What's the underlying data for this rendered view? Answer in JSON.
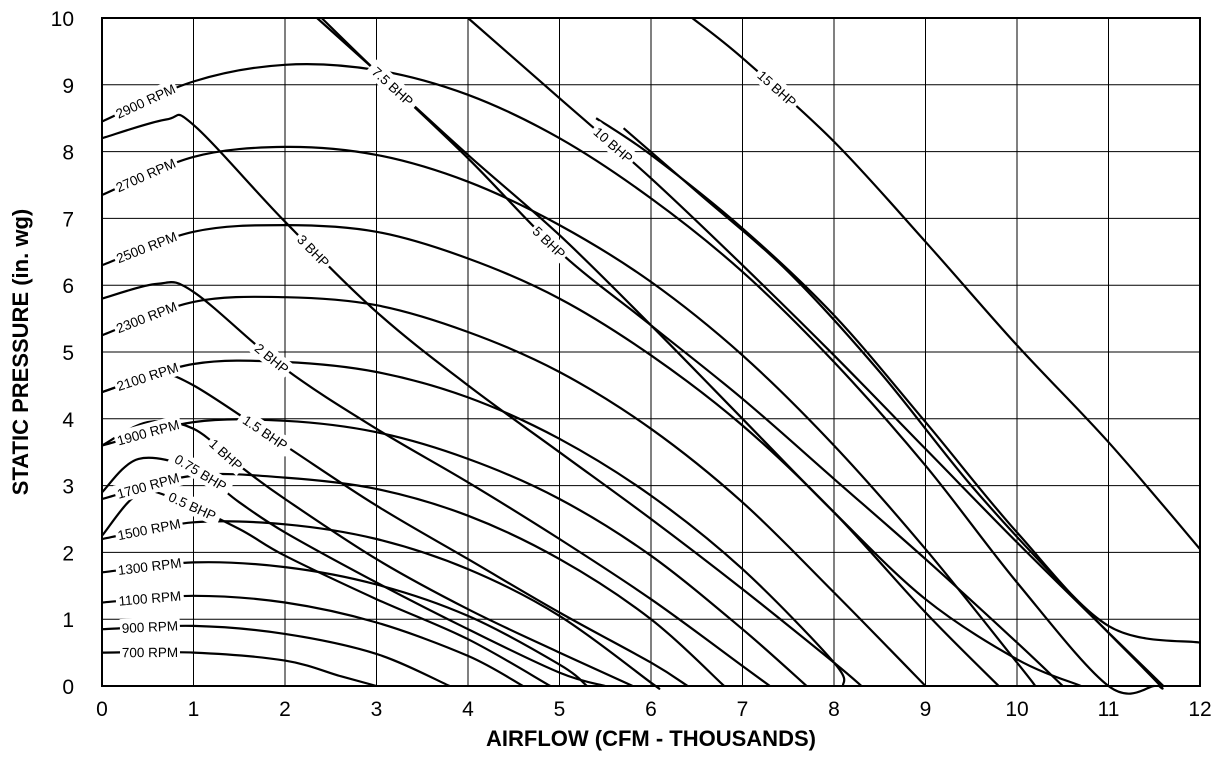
{
  "chart_data": {
    "type": "line",
    "title": "",
    "xlabel": "AIRFLOW (CFM - THOUSANDS)",
    "ylabel": "STATIC PRESSURE (in. wg)",
    "xlim": [
      0,
      12
    ],
    "ylim": [
      0,
      10
    ],
    "xticks": [
      "0",
      "1",
      "2",
      "3",
      "4",
      "5",
      "6",
      "7",
      "8",
      "9",
      "10",
      "11",
      "12"
    ],
    "yticks": [
      "0",
      "1",
      "2",
      "3",
      "4",
      "5",
      "6",
      "7",
      "8",
      "9",
      "10"
    ],
    "grid": true,
    "rpm_series": [
      {
        "label": "2900 RPM",
        "points": [
          [
            0,
            8.45
          ],
          [
            1,
            9.05
          ],
          [
            2,
            9.3
          ],
          [
            3,
            9.22
          ],
          [
            4,
            8.85
          ],
          [
            5,
            8.2
          ],
          [
            6,
            7.3
          ],
          [
            7,
            6.2
          ],
          [
            8,
            4.85
          ],
          [
            9,
            3.3
          ],
          [
            10,
            1.55
          ],
          [
            11,
            0
          ],
          [
            11.5,
            -0.9
          ]
        ]
      },
      {
        "label": "2700 RPM",
        "points": [
          [
            0,
            7.35
          ],
          [
            1,
            7.92
          ],
          [
            2,
            8.07
          ],
          [
            3,
            7.95
          ],
          [
            4,
            7.55
          ],
          [
            5,
            6.9
          ],
          [
            6,
            6.05
          ],
          [
            7,
            4.95
          ],
          [
            8,
            3.6
          ],
          [
            9,
            2.05
          ],
          [
            10,
            0.35
          ],
          [
            10.2,
            0
          ]
        ]
      },
      {
        "label": "2500 RPM",
        "points": [
          [
            0,
            6.3
          ],
          [
            1,
            6.8
          ],
          [
            2,
            6.9
          ],
          [
            3,
            6.8
          ],
          [
            4,
            6.4
          ],
          [
            5,
            5.8
          ],
          [
            6,
            4.95
          ],
          [
            7,
            3.9
          ],
          [
            8,
            2.6
          ],
          [
            9,
            1.1
          ],
          [
            9.8,
            0
          ]
        ]
      },
      {
        "label": "2300 RPM",
        "points": [
          [
            0,
            5.25
          ],
          [
            1,
            5.75
          ],
          [
            2,
            5.82
          ],
          [
            3,
            5.7
          ],
          [
            4,
            5.3
          ],
          [
            5,
            4.7
          ],
          [
            6,
            3.85
          ],
          [
            7,
            2.75
          ],
          [
            8,
            1.4
          ],
          [
            9,
            0
          ]
        ]
      },
      {
        "label": "2100 RPM",
        "points": [
          [
            0,
            4.4
          ],
          [
            1,
            4.82
          ],
          [
            2,
            4.85
          ],
          [
            3,
            4.7
          ],
          [
            4,
            4.32
          ],
          [
            5,
            3.7
          ],
          [
            6,
            2.85
          ],
          [
            7,
            1.75
          ],
          [
            8,
            0.35
          ],
          [
            8.1,
            0
          ]
        ]
      },
      {
        "label": "1900 RPM",
        "points": [
          [
            0,
            3.6
          ],
          [
            1,
            3.95
          ],
          [
            2,
            3.97
          ],
          [
            3,
            3.8
          ],
          [
            4,
            3.4
          ],
          [
            5,
            2.8
          ],
          [
            6,
            1.95
          ],
          [
            7,
            0.85
          ],
          [
            7.7,
            0
          ]
        ]
      },
      {
        "label": "1700 RPM",
        "points": [
          [
            0,
            2.8
          ],
          [
            1,
            3.15
          ],
          [
            2,
            3.12
          ],
          [
            3,
            2.95
          ],
          [
            4,
            2.55
          ],
          [
            5,
            1.9
          ],
          [
            6,
            1.0
          ],
          [
            6.8,
            0
          ]
        ]
      },
      {
        "label": "1500 RPM",
        "points": [
          [
            0,
            2.2
          ],
          [
            1,
            2.45
          ],
          [
            2,
            2.42
          ],
          [
            3,
            2.2
          ],
          [
            4,
            1.75
          ],
          [
            5,
            1.05
          ],
          [
            6,
            0.05
          ],
          [
            6.05,
            0
          ]
        ]
      },
      {
        "label": "1300 RPM",
        "points": [
          [
            0,
            1.7
          ],
          [
            1,
            1.85
          ],
          [
            2,
            1.78
          ],
          [
            3,
            1.52
          ],
          [
            4,
            1.05
          ],
          [
            5,
            0.32
          ],
          [
            5.3,
            0
          ]
        ]
      },
      {
        "label": "1100 RPM",
        "points": [
          [
            0,
            1.25
          ],
          [
            1,
            1.35
          ],
          [
            2,
            1.25
          ],
          [
            3,
            0.95
          ],
          [
            4,
            0.45
          ],
          [
            4.6,
            0
          ]
        ]
      },
      {
        "label": "900 RPM",
        "points": [
          [
            0,
            0.85
          ],
          [
            1,
            0.9
          ],
          [
            2,
            0.78
          ],
          [
            3,
            0.48
          ],
          [
            3.8,
            0
          ]
        ]
      },
      {
        "label": "700 RPM",
        "points": [
          [
            0,
            0.5
          ],
          [
            1,
            0.5
          ],
          [
            2,
            0.38
          ],
          [
            2.6,
            0.15
          ],
          [
            3,
            0
          ]
        ]
      }
    ],
    "bhp_series": [
      {
        "label": "0.5 BHP",
        "points": [
          [
            0,
            2.25
          ],
          [
            0.4,
            2.88
          ],
          [
            0.8,
            2.8
          ],
          [
            1.5,
            2.35
          ],
          [
            2,
            1.95
          ],
          [
            3,
            1.3
          ],
          [
            4,
            0.7
          ],
          [
            4.9,
            0
          ]
        ]
      },
      {
        "label": "0.75 BHP",
        "points": [
          [
            0,
            2.9
          ],
          [
            0.4,
            3.4
          ],
          [
            1,
            3.25
          ],
          [
            1.5,
            2.75
          ],
          [
            2,
            2.3
          ],
          [
            3,
            1.55
          ],
          [
            4,
            0.85
          ],
          [
            5,
            0.2
          ],
          [
            5.5,
            0
          ]
        ]
      },
      {
        "label": "1 BHP",
        "points": [
          [
            0,
            3.6
          ],
          [
            0.5,
            3.95
          ],
          [
            1,
            3.85
          ],
          [
            1.5,
            3.3
          ],
          [
            2,
            2.8
          ],
          [
            3,
            1.9
          ],
          [
            4,
            1.15
          ],
          [
            5,
            0.5
          ],
          [
            5.8,
            0
          ]
        ]
      },
      {
        "label": "1.5 BHP",
        "points": [
          [
            0,
            4.4
          ],
          [
            0.6,
            4.65
          ],
          [
            1,
            4.5
          ],
          [
            2,
            3.6
          ],
          [
            3,
            2.7
          ],
          [
            4,
            1.9
          ],
          [
            5,
            1.1
          ],
          [
            6,
            0.35
          ],
          [
            6.4,
            0
          ]
        ]
      },
      {
        "label": "2 BHP",
        "points": [
          [
            0,
            5.8
          ],
          [
            0.6,
            6.02
          ],
          [
            1,
            5.9
          ],
          [
            2,
            4.75
          ],
          [
            3,
            3.85
          ],
          [
            4,
            3.05
          ],
          [
            5,
            2.2
          ],
          [
            6,
            1.3
          ],
          [
            7,
            0.3
          ],
          [
            7.3,
            0
          ]
        ]
      },
      {
        "label": "3 BHP",
        "points": [
          [
            0,
            8.2
          ],
          [
            0.7,
            8.48
          ],
          [
            1,
            8.4
          ],
          [
            2,
            6.95
          ],
          [
            3,
            5.6
          ],
          [
            4,
            4.5
          ],
          [
            5,
            3.5
          ],
          [
            6,
            2.5
          ],
          [
            7,
            1.45
          ],
          [
            8,
            0.35
          ],
          [
            8.3,
            0
          ]
        ]
      },
      {
        "label": "5 BHP",
        "points": [
          [
            2.4,
            10
          ],
          [
            3,
            9.2
          ],
          [
            4,
            7.9
          ],
          [
            5,
            6.5
          ],
          [
            6,
            5.4
          ],
          [
            7,
            4.3
          ],
          [
            8,
            3.1
          ],
          [
            9,
            1.9
          ],
          [
            10,
            0.65
          ],
          [
            10.5,
            0
          ]
        ]
      },
      {
        "label": "7.5 BHP",
        "points": [
          [
            2.35,
            10
          ],
          [
            3,
            9.2
          ],
          [
            4,
            7.95
          ],
          [
            5,
            6.75
          ],
          [
            6,
            5.4
          ],
          [
            7,
            4.0
          ],
          [
            8,
            2.6
          ],
          [
            9,
            1.3
          ],
          [
            10,
            0.4
          ],
          [
            10.7,
            0
          ]
        ]
      },
      {
        "label": "10 BHP",
        "points": [
          [
            4,
            10
          ],
          [
            5,
            8.8
          ],
          [
            6,
            7.6
          ],
          [
            7,
            6.3
          ],
          [
            8,
            4.95
          ],
          [
            9,
            3.55
          ],
          [
            10,
            2.15
          ],
          [
            11,
            0.8
          ],
          [
            11.6,
            0
          ]
        ]
      },
      {
        "label": "15 BHP",
        "points": [
          [
            6.45,
            10
          ],
          [
            7,
            9.4
          ],
          [
            8,
            8.15
          ],
          [
            9,
            6.65
          ],
          [
            10,
            5.1
          ],
          [
            11,
            3.65
          ],
          [
            12,
            2.05
          ]
        ]
      }
    ],
    "extra_curves": [
      {
        "points": [
          [
            5.4,
            8.5
          ],
          [
            6,
            7.95
          ],
          [
            7,
            6.85
          ],
          [
            8,
            5.55
          ],
          [
            9,
            3.95
          ],
          [
            10,
            2.3
          ],
          [
            11,
            0.9
          ],
          [
            12,
            0.65
          ]
        ]
      },
      {
        "points": [
          [
            5.7,
            8.35
          ],
          [
            6.5,
            7.4
          ],
          [
            7.5,
            6.2
          ],
          [
            8.5,
            4.7
          ],
          [
            9.5,
            3.0
          ],
          [
            10.5,
            1.5
          ],
          [
            11.5,
            0.1
          ],
          [
            11.55,
            0
          ]
        ]
      }
    ]
  }
}
